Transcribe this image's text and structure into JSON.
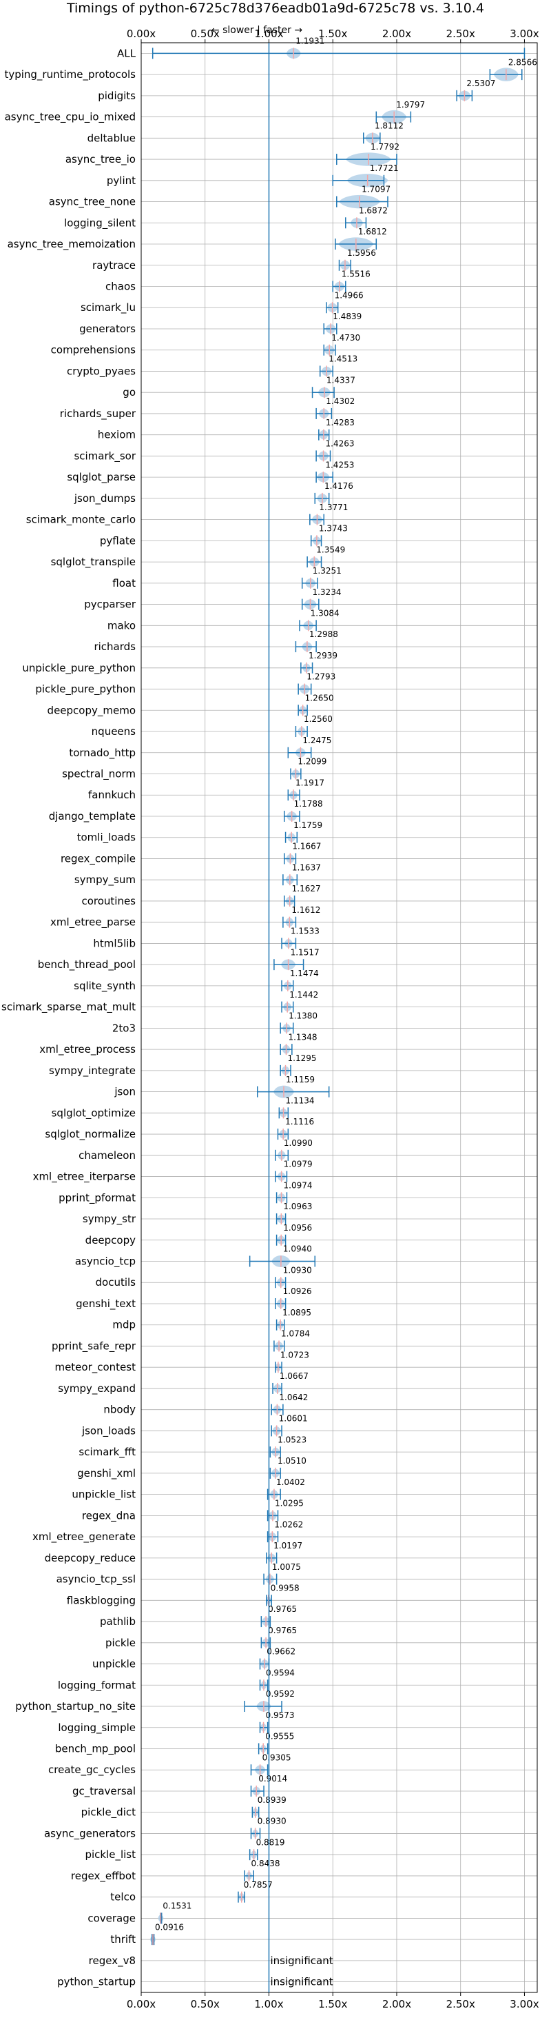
{
  "chart_data": {
    "type": "violin",
    "title": "Timings of python-6725c78d376eadb01a9d-6725c78 vs. 3.10.4",
    "direction_label": "← slower | faster →",
    "insignificant_label": "insignificant",
    "xlim": [
      0.0,
      3.1
    ],
    "x_ticks": [
      "0.00x",
      "0.50x",
      "1.00x",
      "1.50x",
      "2.00x",
      "2.50x",
      "3.00x"
    ],
    "grid": true,
    "colors": {
      "body": "#aecde6",
      "line": "#1f77b4",
      "median": "#f4a6a6",
      "text": "#000000"
    },
    "benchmarks": [
      {
        "name": "ALL",
        "value": 1.1931,
        "min": 0.09,
        "max": 3.0,
        "spread": 0.07,
        "label": "1.1931"
      },
      {
        "name": "typing_runtime_protocols",
        "value": 2.8566,
        "min": 2.73,
        "max": 2.98,
        "spread": 0.12,
        "label": "2.8566"
      },
      {
        "name": "pidigits",
        "value": 2.5307,
        "min": 2.47,
        "max": 2.59,
        "spread": 0.06,
        "label": "2.5307"
      },
      {
        "name": "async_tree_cpu_io_mixed",
        "value": 1.9797,
        "min": 1.84,
        "max": 2.11,
        "spread": 0.12,
        "label": "1.9797"
      },
      {
        "name": "deltablue",
        "value": 1.8112,
        "min": 1.74,
        "max": 1.87,
        "spread": 0.07,
        "label": "1.8112"
      },
      {
        "name": "async_tree_io",
        "value": 1.7792,
        "min": 1.53,
        "max": 2.0,
        "spread": 0.22,
        "label": "1.7792"
      },
      {
        "name": "pylint",
        "value": 1.7721,
        "min": 1.5,
        "max": 1.9,
        "spread": 0.2,
        "label": "1.7721"
      },
      {
        "name": "async_tree_none",
        "value": 1.7097,
        "min": 1.53,
        "max": 1.93,
        "spread": 0.2,
        "label": "1.7097"
      },
      {
        "name": "logging_silent",
        "value": 1.6872,
        "min": 1.6,
        "max": 1.76,
        "spread": 0.06,
        "label": "1.6872"
      },
      {
        "name": "async_tree_memoization",
        "value": 1.6812,
        "min": 1.52,
        "max": 1.84,
        "spread": 0.17,
        "label": "1.6812"
      },
      {
        "name": "raytrace",
        "value": 1.5956,
        "min": 1.55,
        "max": 1.64,
        "spread": 0.05,
        "label": "1.5956"
      },
      {
        "name": "chaos",
        "value": 1.5516,
        "min": 1.5,
        "max": 1.6,
        "spread": 0.05,
        "label": "1.5516"
      },
      {
        "name": "scimark_lu",
        "value": 1.4966,
        "min": 1.45,
        "max": 1.54,
        "spread": 0.05,
        "label": "1.4966"
      },
      {
        "name": "generators",
        "value": 1.4839,
        "min": 1.43,
        "max": 1.53,
        "spread": 0.05,
        "label": "1.4839"
      },
      {
        "name": "comprehensions",
        "value": 1.473,
        "min": 1.43,
        "max": 1.52,
        "spread": 0.05,
        "label": "1.4730"
      },
      {
        "name": "crypto_pyaes",
        "value": 1.4513,
        "min": 1.4,
        "max": 1.5,
        "spread": 0.05,
        "label": "1.4513"
      },
      {
        "name": "go",
        "value": 1.4337,
        "min": 1.34,
        "max": 1.51,
        "spread": 0.06,
        "label": "1.4337"
      },
      {
        "name": "richards_super",
        "value": 1.4302,
        "min": 1.37,
        "max": 1.49,
        "spread": 0.05,
        "label": "1.4302"
      },
      {
        "name": "hexiom",
        "value": 1.4283,
        "min": 1.39,
        "max": 1.47,
        "spread": 0.05,
        "label": "1.4283"
      },
      {
        "name": "scimark_sor",
        "value": 1.4263,
        "min": 1.37,
        "max": 1.48,
        "spread": 0.05,
        "label": "1.4263"
      },
      {
        "name": "sqlglot_parse",
        "value": 1.4253,
        "min": 1.37,
        "max": 1.5,
        "spread": 0.06,
        "label": "1.4253"
      },
      {
        "name": "json_dumps",
        "value": 1.4176,
        "min": 1.36,
        "max": 1.47,
        "spread": 0.05,
        "label": "1.4176"
      },
      {
        "name": "scimark_monte_carlo",
        "value": 1.3771,
        "min": 1.32,
        "max": 1.43,
        "spread": 0.05,
        "label": "1.3771"
      },
      {
        "name": "pyflate",
        "value": 1.3743,
        "min": 1.33,
        "max": 1.41,
        "spread": 0.04,
        "label": "1.3743"
      },
      {
        "name": "sqlglot_transpile",
        "value": 1.3549,
        "min": 1.3,
        "max": 1.41,
        "spread": 0.05,
        "label": "1.3549"
      },
      {
        "name": "float",
        "value": 1.3251,
        "min": 1.26,
        "max": 1.38,
        "spread": 0.05,
        "label": "1.3251"
      },
      {
        "name": "pycparser",
        "value": 1.3234,
        "min": 1.26,
        "max": 1.39,
        "spread": 0.06,
        "label": "1.3234"
      },
      {
        "name": "mako",
        "value": 1.3084,
        "min": 1.24,
        "max": 1.37,
        "spread": 0.05,
        "label": "1.3084"
      },
      {
        "name": "richards",
        "value": 1.2988,
        "min": 1.21,
        "max": 1.37,
        "spread": 0.05,
        "label": "1.2988"
      },
      {
        "name": "unpickle_pure_python",
        "value": 1.2939,
        "min": 1.25,
        "max": 1.34,
        "spread": 0.04,
        "label": "1.2939"
      },
      {
        "name": "pickle_pure_python",
        "value": 1.2793,
        "min": 1.23,
        "max": 1.33,
        "spread": 0.05,
        "label": "1.2793"
      },
      {
        "name": "deepcopy_memo",
        "value": 1.265,
        "min": 1.23,
        "max": 1.3,
        "spread": 0.04,
        "label": "1.2650"
      },
      {
        "name": "nqueens",
        "value": 1.256,
        "min": 1.21,
        "max": 1.3,
        "spread": 0.04,
        "label": "1.2560"
      },
      {
        "name": "tornado_http",
        "value": 1.2475,
        "min": 1.15,
        "max": 1.33,
        "spread": 0.05,
        "label": "1.2475"
      },
      {
        "name": "spectral_norm",
        "value": 1.2099,
        "min": 1.17,
        "max": 1.25,
        "spread": 0.04,
        "label": "1.2099"
      },
      {
        "name": "fannkuch",
        "value": 1.1917,
        "min": 1.15,
        "max": 1.24,
        "spread": 0.04,
        "label": "1.1917"
      },
      {
        "name": "django_template",
        "value": 1.1788,
        "min": 1.12,
        "max": 1.24,
        "spread": 0.05,
        "label": "1.1788"
      },
      {
        "name": "tomli_loads",
        "value": 1.1759,
        "min": 1.13,
        "max": 1.22,
        "spread": 0.04,
        "label": "1.1759"
      },
      {
        "name": "regex_compile",
        "value": 1.1667,
        "min": 1.12,
        "max": 1.21,
        "spread": 0.04,
        "label": "1.1667"
      },
      {
        "name": "sympy_sum",
        "value": 1.1637,
        "min": 1.11,
        "max": 1.22,
        "spread": 0.04,
        "label": "1.1637"
      },
      {
        "name": "coroutines",
        "value": 1.1627,
        "min": 1.12,
        "max": 1.2,
        "spread": 0.04,
        "label": "1.1627"
      },
      {
        "name": "xml_etree_parse",
        "value": 1.1612,
        "min": 1.11,
        "max": 1.21,
        "spread": 0.04,
        "label": "1.1612"
      },
      {
        "name": "html5lib",
        "value": 1.1533,
        "min": 1.1,
        "max": 1.21,
        "spread": 0.04,
        "label": "1.1533"
      },
      {
        "name": "bench_thread_pool",
        "value": 1.1517,
        "min": 1.04,
        "max": 1.27,
        "spread": 0.07,
        "label": "1.1517"
      },
      {
        "name": "sqlite_synth",
        "value": 1.1474,
        "min": 1.1,
        "max": 1.19,
        "spread": 0.04,
        "label": "1.1474"
      },
      {
        "name": "scimark_sparse_mat_mult",
        "value": 1.1442,
        "min": 1.1,
        "max": 1.19,
        "spread": 0.04,
        "label": "1.1442"
      },
      {
        "name": "2to3",
        "value": 1.138,
        "min": 1.09,
        "max": 1.19,
        "spread": 0.04,
        "label": "1.1380"
      },
      {
        "name": "xml_etree_process",
        "value": 1.1348,
        "min": 1.09,
        "max": 1.18,
        "spread": 0.04,
        "label": "1.1348"
      },
      {
        "name": "sympy_integrate",
        "value": 1.1295,
        "min": 1.09,
        "max": 1.17,
        "spread": 0.04,
        "label": "1.1295"
      },
      {
        "name": "json",
        "value": 1.1159,
        "min": 0.91,
        "max": 1.47,
        "spread": 0.1,
        "label": "1.1159"
      },
      {
        "name": "sqlglot_optimize",
        "value": 1.1134,
        "min": 1.08,
        "max": 1.15,
        "spread": 0.04,
        "label": "1.1134"
      },
      {
        "name": "sqlglot_normalize",
        "value": 1.1116,
        "min": 1.07,
        "max": 1.15,
        "spread": 0.04,
        "label": "1.1116"
      },
      {
        "name": "chameleon",
        "value": 1.099,
        "min": 1.05,
        "max": 1.15,
        "spread": 0.04,
        "label": "1.0990"
      },
      {
        "name": "xml_etree_iterparse",
        "value": 1.0979,
        "min": 1.05,
        "max": 1.14,
        "spread": 0.04,
        "label": "1.0979"
      },
      {
        "name": "pprint_pformat",
        "value": 1.0974,
        "min": 1.06,
        "max": 1.14,
        "spread": 0.04,
        "label": "1.0974"
      },
      {
        "name": "sympy_str",
        "value": 1.0963,
        "min": 1.06,
        "max": 1.13,
        "spread": 0.04,
        "label": "1.0963"
      },
      {
        "name": "deepcopy",
        "value": 1.0956,
        "min": 1.06,
        "max": 1.13,
        "spread": 0.04,
        "label": "1.0956"
      },
      {
        "name": "asyncio_tcp",
        "value": 1.094,
        "min": 0.85,
        "max": 1.36,
        "spread": 0.09,
        "label": "1.0940"
      },
      {
        "name": "docutils",
        "value": 1.093,
        "min": 1.05,
        "max": 1.13,
        "spread": 0.04,
        "label": "1.0930"
      },
      {
        "name": "genshi_text",
        "value": 1.0926,
        "min": 1.05,
        "max": 1.13,
        "spread": 0.04,
        "label": "1.0926"
      },
      {
        "name": "mdp",
        "value": 1.0895,
        "min": 1.06,
        "max": 1.12,
        "spread": 0.03,
        "label": "1.0895"
      },
      {
        "name": "pprint_safe_repr",
        "value": 1.0784,
        "min": 1.04,
        "max": 1.12,
        "spread": 0.04,
        "label": "1.0784"
      },
      {
        "name": "meteor_contest",
        "value": 1.0723,
        "min": 1.05,
        "max": 1.1,
        "spread": 0.03,
        "label": "1.0723"
      },
      {
        "name": "sympy_expand",
        "value": 1.0667,
        "min": 1.03,
        "max": 1.1,
        "spread": 0.04,
        "label": "1.0667"
      },
      {
        "name": "nbody",
        "value": 1.0642,
        "min": 1.02,
        "max": 1.11,
        "spread": 0.04,
        "label": "1.0642"
      },
      {
        "name": "json_loads",
        "value": 1.0601,
        "min": 1.02,
        "max": 1.1,
        "spread": 0.04,
        "label": "1.0601"
      },
      {
        "name": "scimark_fft",
        "value": 1.0523,
        "min": 1.01,
        "max": 1.09,
        "spread": 0.04,
        "label": "1.0523"
      },
      {
        "name": "genshi_xml",
        "value": 1.051,
        "min": 1.01,
        "max": 1.09,
        "spread": 0.04,
        "label": "1.0510"
      },
      {
        "name": "unpickle_list",
        "value": 1.0402,
        "min": 0.99,
        "max": 1.09,
        "spread": 0.04,
        "label": "1.0402"
      },
      {
        "name": "regex_dna",
        "value": 1.0295,
        "min": 0.99,
        "max": 1.07,
        "spread": 0.04,
        "label": "1.0295"
      },
      {
        "name": "xml_etree_generate",
        "value": 1.0262,
        "min": 0.99,
        "max": 1.07,
        "spread": 0.04,
        "label": "1.0262"
      },
      {
        "name": "deepcopy_reduce",
        "value": 1.0197,
        "min": 0.98,
        "max": 1.06,
        "spread": 0.04,
        "label": "1.0197"
      },
      {
        "name": "asyncio_tcp_ssl",
        "value": 1.0075,
        "min": 0.96,
        "max": 1.06,
        "spread": 0.04,
        "label": "1.0075"
      },
      {
        "name": "flaskblogging",
        "value": 0.9958,
        "min": 0.98,
        "max": 1.02,
        "spread": 0.02,
        "label": "0.9958"
      },
      {
        "name": "pathlib",
        "value": 0.9765,
        "min": 0.94,
        "max": 1.01,
        "spread": 0.04,
        "label": "0.9765"
      },
      {
        "name": "pickle",
        "value": 0.9765,
        "min": 0.94,
        "max": 1.01,
        "spread": 0.04,
        "label": "0.9765"
      },
      {
        "name": "unpickle",
        "value": 0.9662,
        "min": 0.93,
        "max": 1.0,
        "spread": 0.04,
        "label": "0.9662"
      },
      {
        "name": "logging_format",
        "value": 0.9594,
        "min": 0.93,
        "max": 0.99,
        "spread": 0.03,
        "label": "0.9594"
      },
      {
        "name": "python_startup_no_site",
        "value": 0.9592,
        "min": 0.81,
        "max": 1.1,
        "spread": 0.07,
        "label": "0.9592"
      },
      {
        "name": "logging_simple",
        "value": 0.9573,
        "min": 0.93,
        "max": 0.99,
        "spread": 0.03,
        "label": "0.9573"
      },
      {
        "name": "bench_mp_pool",
        "value": 0.9555,
        "min": 0.92,
        "max": 0.99,
        "spread": 0.03,
        "label": "0.9555"
      },
      {
        "name": "create_gc_cycles",
        "value": 0.9305,
        "min": 0.86,
        "max": 0.99,
        "spread": 0.05,
        "label": "0.9305"
      },
      {
        "name": "gc_traversal",
        "value": 0.9014,
        "min": 0.86,
        "max": 0.96,
        "spread": 0.04,
        "label": "0.9014"
      },
      {
        "name": "pickle_dict",
        "value": 0.8939,
        "min": 0.87,
        "max": 0.92,
        "spread": 0.03,
        "label": "0.8939"
      },
      {
        "name": "async_generators",
        "value": 0.893,
        "min": 0.86,
        "max": 0.93,
        "spread": 0.03,
        "label": "0.8930"
      },
      {
        "name": "pickle_list",
        "value": 0.8819,
        "min": 0.85,
        "max": 0.91,
        "spread": 0.03,
        "label": "0.8819"
      },
      {
        "name": "regex_effbot",
        "value": 0.8438,
        "min": 0.81,
        "max": 0.88,
        "spread": 0.03,
        "label": "0.8438"
      },
      {
        "name": "telco",
        "value": 0.7857,
        "min": 0.76,
        "max": 0.81,
        "spread": 0.03,
        "label": "0.7857"
      },
      {
        "name": "coverage",
        "value": 0.1531,
        "min": 0.15,
        "max": 0.16,
        "spread": 0.01,
        "label": "0.1531"
      },
      {
        "name": "thrift",
        "value": 0.0916,
        "min": 0.085,
        "max": 0.1,
        "spread": 0.01,
        "label": "0.0916"
      },
      {
        "name": "regex_v8",
        "value": null,
        "label": "insignificant"
      },
      {
        "name": "python_startup",
        "value": null,
        "label": "insignificant"
      }
    ]
  }
}
